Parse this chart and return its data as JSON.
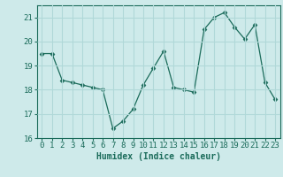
{
  "x": [
    0,
    1,
    2,
    3,
    4,
    5,
    6,
    7,
    8,
    9,
    10,
    11,
    12,
    13,
    14,
    15,
    16,
    17,
    18,
    19,
    20,
    21,
    22,
    23
  ],
  "y": [
    19.5,
    19.5,
    18.4,
    18.3,
    18.2,
    18.1,
    18.0,
    16.4,
    16.7,
    17.2,
    18.2,
    18.9,
    19.6,
    18.1,
    18.0,
    17.9,
    20.5,
    21.0,
    21.2,
    20.6,
    20.1,
    20.7,
    18.3,
    17.6
  ],
  "line_color": "#1a6b5a",
  "marker": "D",
  "marker_size": 2.5,
  "bg_color": "#ceeaea",
  "grid_color": "#b0d8d8",
  "xlabel": "Humidex (Indice chaleur)",
  "ylim": [
    16,
    21.5
  ],
  "xlim": [
    -0.5,
    23.5
  ],
  "yticks": [
    16,
    17,
    18,
    19,
    20,
    21
  ],
  "xticks": [
    0,
    1,
    2,
    3,
    4,
    5,
    6,
    7,
    8,
    9,
    10,
    11,
    12,
    13,
    14,
    15,
    16,
    17,
    18,
    19,
    20,
    21,
    22,
    23
  ],
  "xtick_labels": [
    "0",
    "1",
    "2",
    "3",
    "4",
    "5",
    "6",
    "7",
    "8",
    "9",
    "10",
    "11",
    "12",
    "13",
    "14",
    "15",
    "16",
    "17",
    "18",
    "19",
    "20",
    "21",
    "22",
    "23"
  ],
  "tick_color": "#1a6b5a",
  "label_fontsize": 7,
  "tick_fontsize": 6.5
}
